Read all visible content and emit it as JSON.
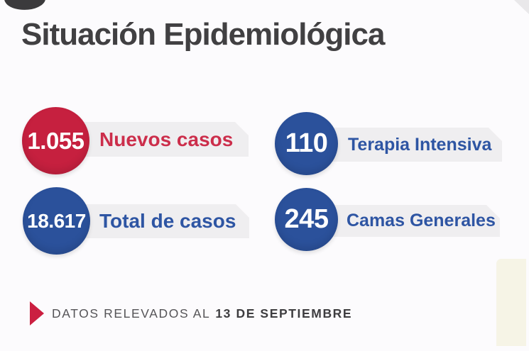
{
  "title": "Situación Epidemiológica",
  "stats": [
    {
      "value": "1.055",
      "label": "Nuevos casos",
      "circle_color": "#c6203f",
      "label_color": "#cc2e4b"
    },
    {
      "value": "110",
      "label": "Terapia Intensiva",
      "circle_color": "#2b519b",
      "label_color": "#2e55a3"
    },
    {
      "value": "18.617",
      "label": "Total de casos",
      "circle_color": "#2b519b",
      "label_color": "#2e55a3"
    },
    {
      "value": "245",
      "label": "Camas Generales",
      "circle_color": "#2b519b",
      "label_color": "#2e55a3"
    }
  ],
  "footer": {
    "prefix": "DATOS RELEVADOS AL",
    "date": "13 DE SEPTIEMBRE",
    "bullet_color": "#cb1f41"
  },
  "colors": {
    "background": "#fcfbfd",
    "banner": "#efeef0",
    "title_text": "#414042",
    "accent_cream": "#f6f4e6"
  }
}
